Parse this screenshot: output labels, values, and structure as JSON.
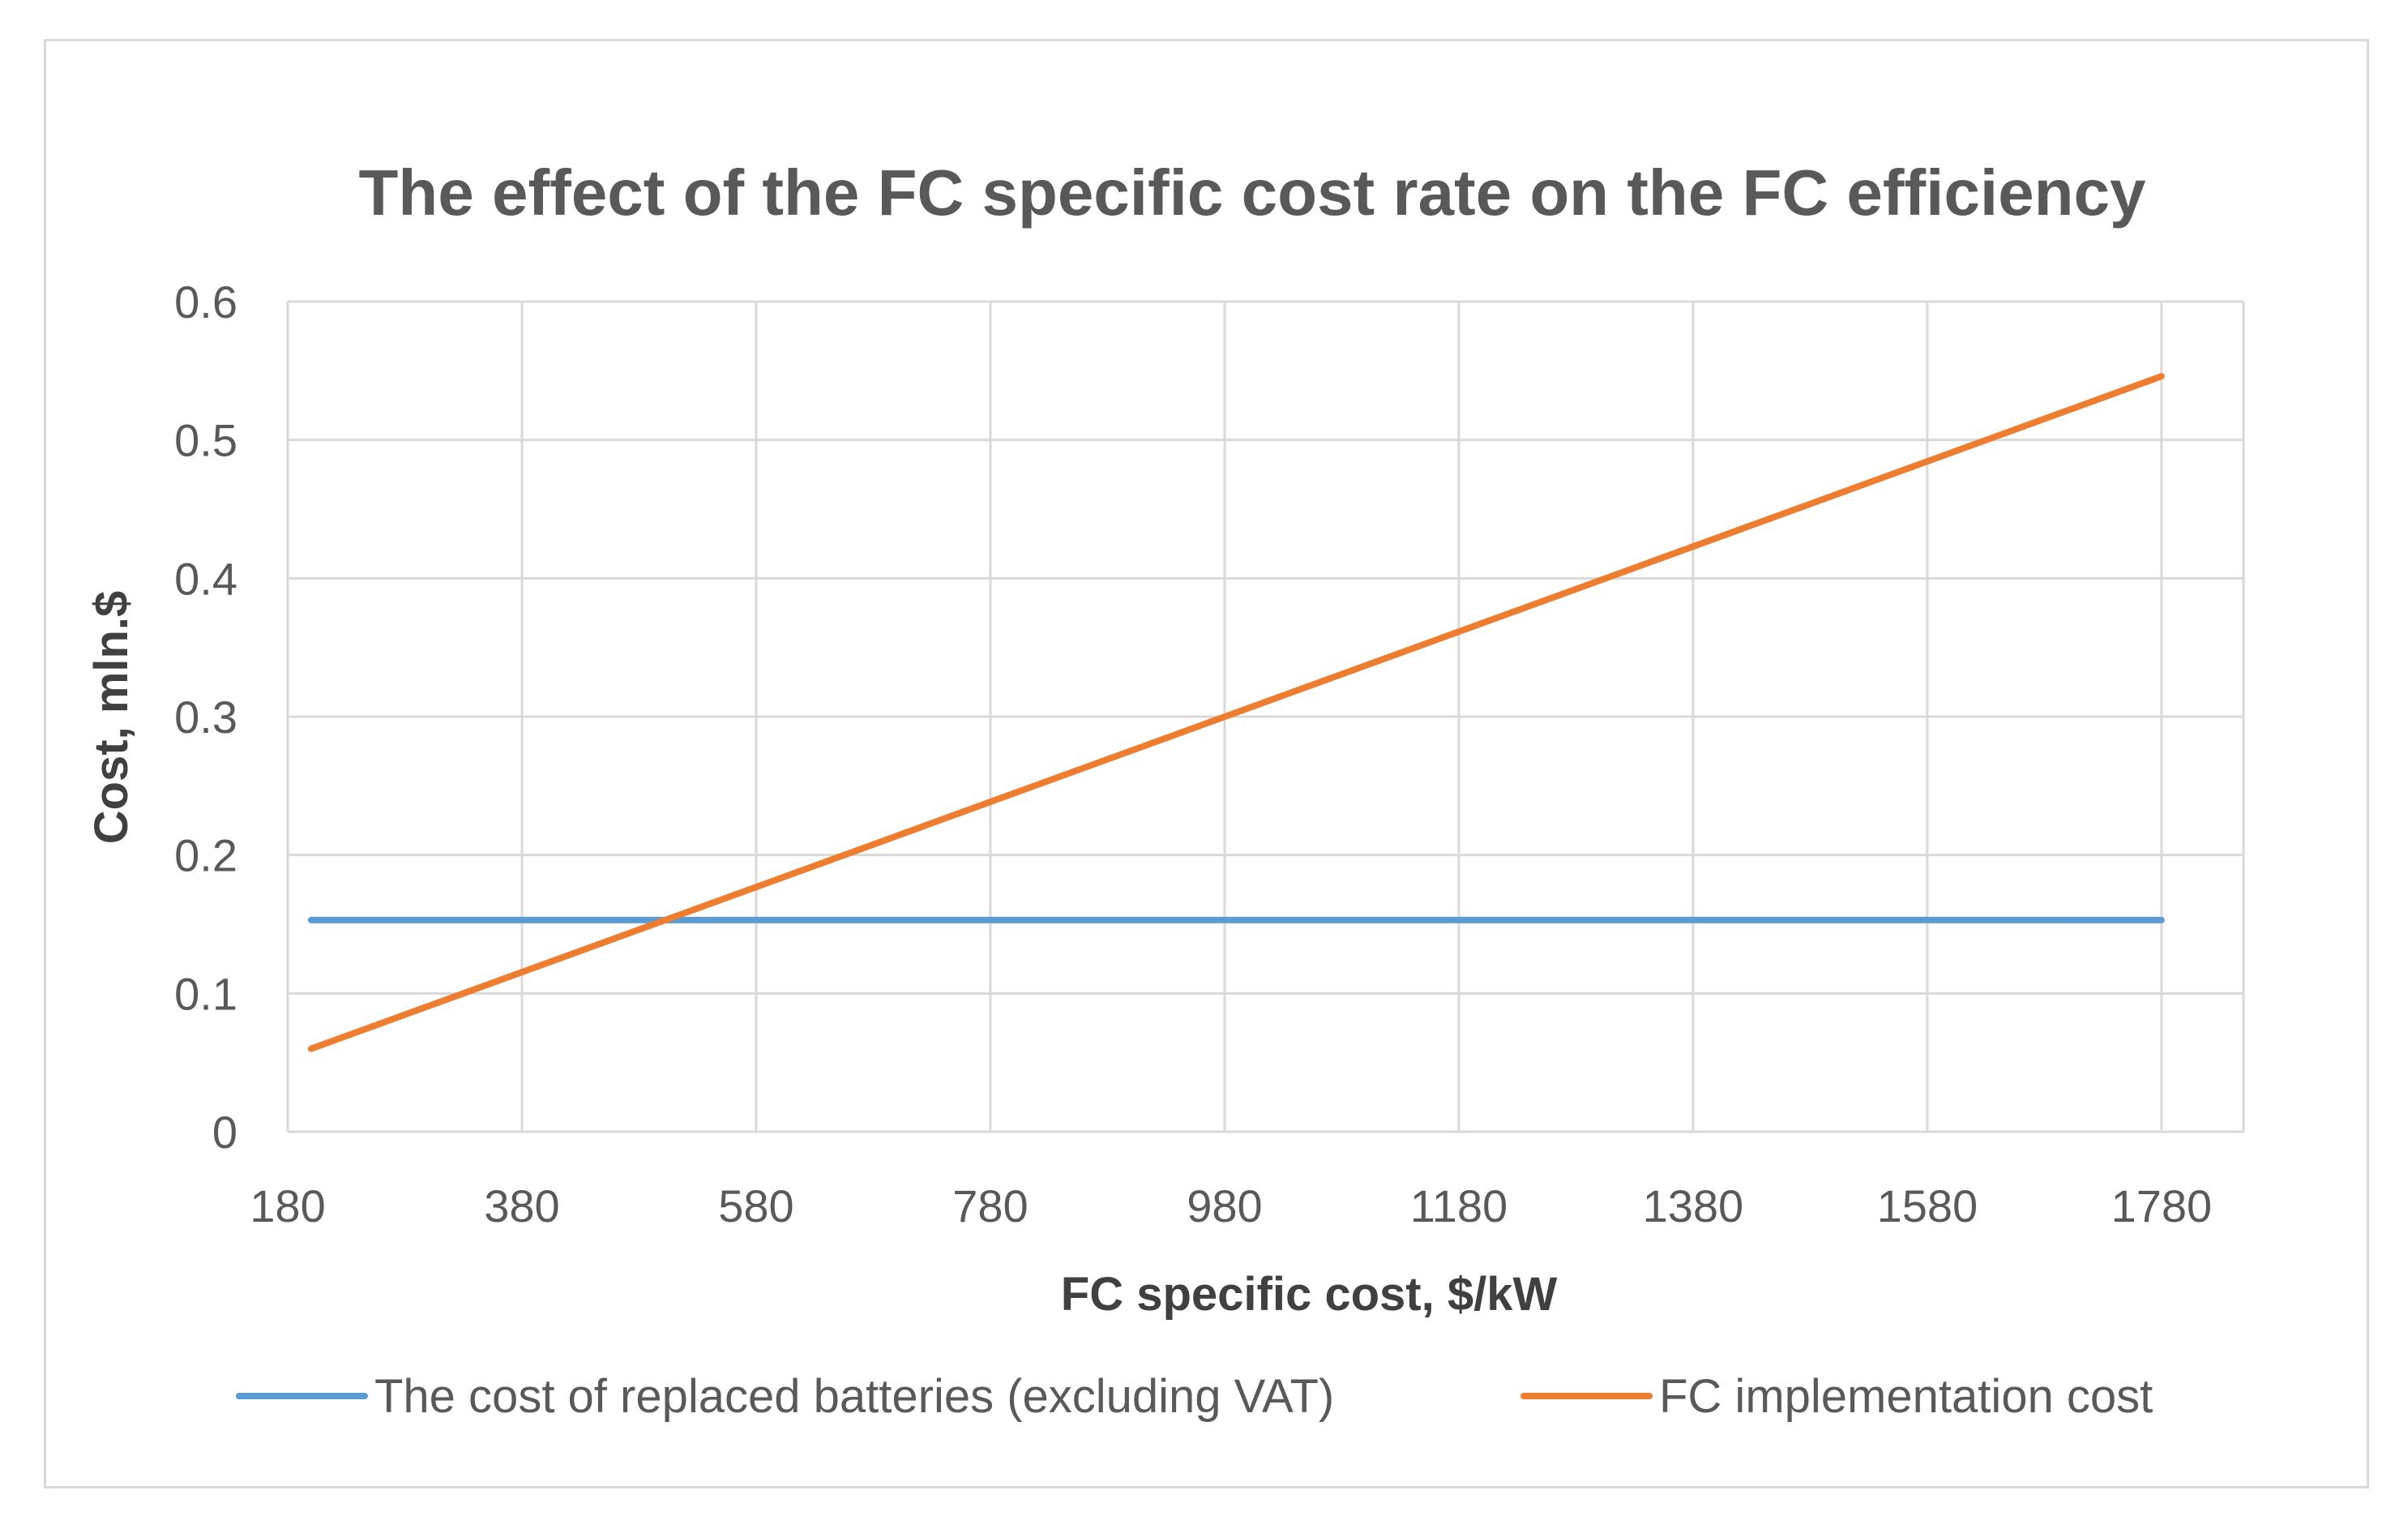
{
  "chart_data": {
    "type": "line",
    "title": "The effect of the FC specific cost rate on the FC efficiency",
    "xlabel": "FC specific cost, $/kW",
    "ylabel": "Cost, mln.$",
    "x_ticks": [
      "180",
      "380",
      "580",
      "780",
      "980",
      "1180",
      "1380",
      "1580",
      "1780"
    ],
    "y_ticks": [
      "0",
      "0.1",
      "0.2",
      "0.3",
      "0.4",
      "0.5",
      "0.6"
    ],
    "xlim": [
      180,
      1850
    ],
    "ylim": [
      0,
      0.6
    ],
    "grid": true,
    "legend_position": "bottom",
    "series": [
      {
        "name": "The cost of replaced batteries (excluding VAT)",
        "color": "#5b9bd5",
        "x": [
          200,
          1780
        ],
        "y": [
          0.153,
          0.153
        ]
      },
      {
        "name": "FC implementation cost",
        "color": "#ed7d31",
        "x": [
          200,
          1780
        ],
        "y": [
          0.06,
          0.546
        ]
      }
    ]
  }
}
